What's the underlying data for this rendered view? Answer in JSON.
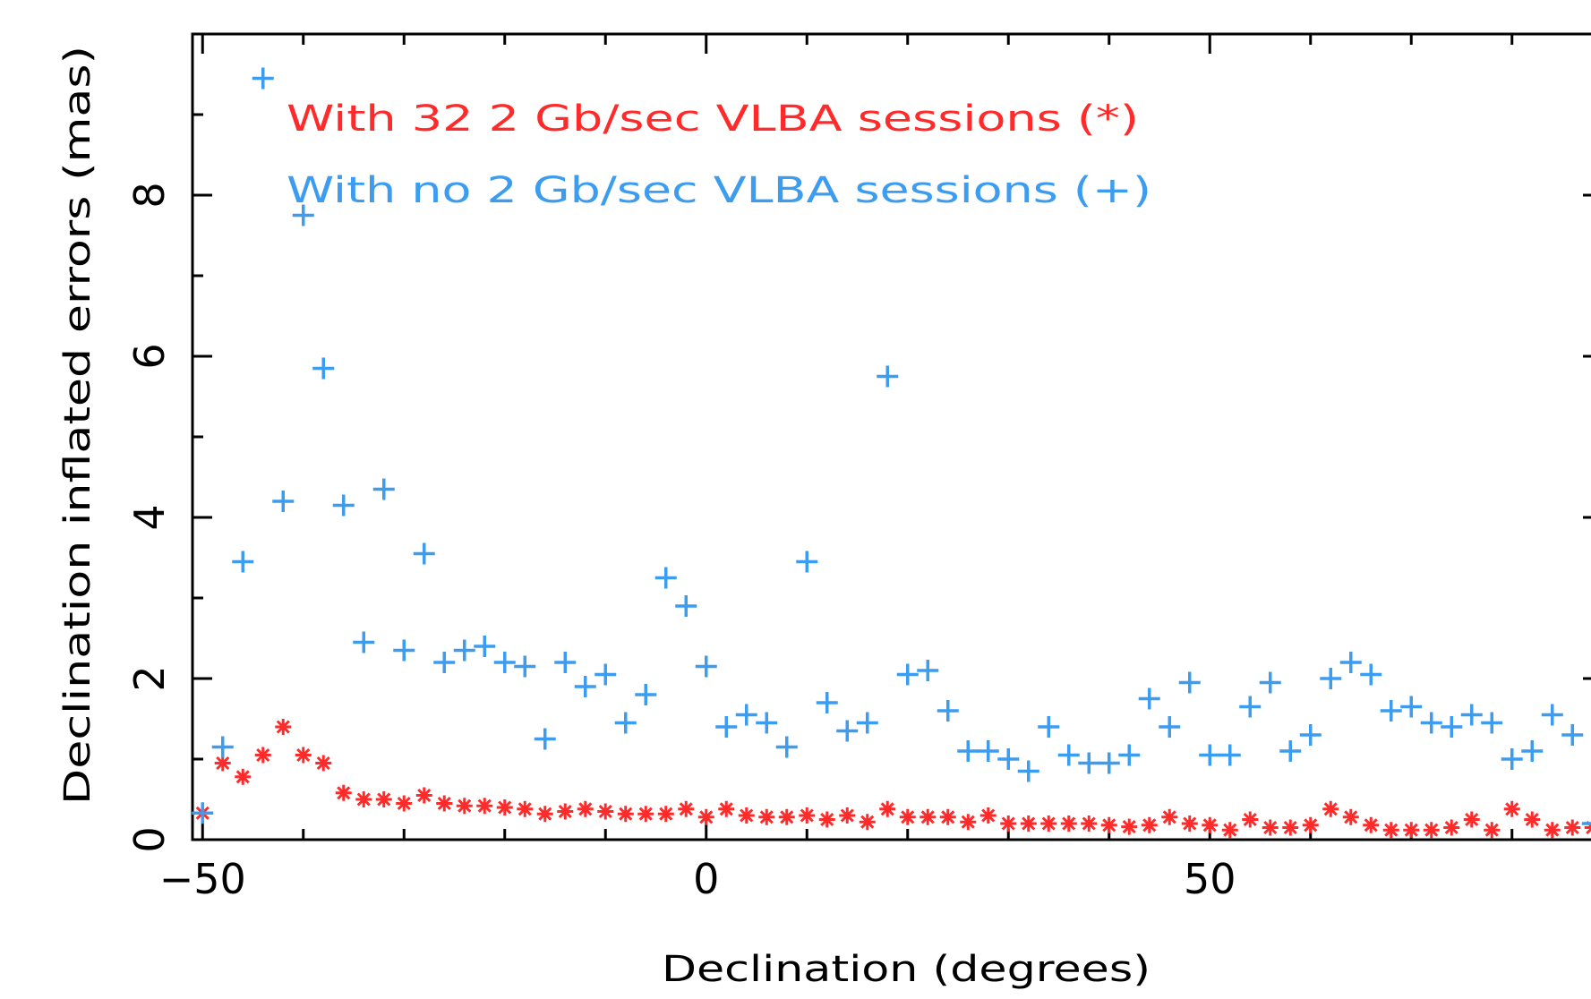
{
  "chart_data": {
    "type": "scatter",
    "xlabel": "Declination (degrees)",
    "ylabel": "Declination inflated errors (mas)",
    "xlim": [
      -51,
      89
    ],
    "ylim": [
      0,
      10
    ],
    "x_ticks": [
      -50,
      0,
      50
    ],
    "x_tick_labels": [
      "−50",
      "0",
      "50"
    ],
    "y_ticks": [
      0,
      2,
      4,
      6,
      8
    ],
    "y_tick_labels": [
      "0",
      "2",
      "4",
      "6",
      "8"
    ],
    "grid": false,
    "legend": {
      "placement": "top-left",
      "entries": [
        {
          "text": "With 32 2 Gb/sec VLBA sessions (*)",
          "series": 0
        },
        {
          "text": "With no 2 Gb/sec VLBA sessions (+)",
          "series": 1
        }
      ]
    },
    "series": [
      {
        "marker": "star",
        "color": "#ff2a2a",
        "points": [
          [
            -50,
            0.33
          ],
          [
            -48,
            0.95
          ],
          [
            -46,
            0.78
          ],
          [
            -44,
            1.05
          ],
          [
            -42,
            1.4
          ],
          [
            -40,
            1.05
          ],
          [
            -38,
            0.95
          ],
          [
            -36,
            0.58
          ],
          [
            -34,
            0.5
          ],
          [
            -32,
            0.5
          ],
          [
            -30,
            0.45
          ],
          [
            -28,
            0.55
          ],
          [
            -26,
            0.45
          ],
          [
            -24,
            0.42
          ],
          [
            -22,
            0.42
          ],
          [
            -20,
            0.4
          ],
          [
            -18,
            0.38
          ],
          [
            -16,
            0.32
          ],
          [
            -14,
            0.35
          ],
          [
            -12,
            0.38
          ],
          [
            -10,
            0.35
          ],
          [
            -8,
            0.32
          ],
          [
            -6,
            0.32
          ],
          [
            -4,
            0.32
          ],
          [
            -2,
            0.38
          ],
          [
            0,
            0.28
          ],
          [
            2,
            0.38
          ],
          [
            4,
            0.3
          ],
          [
            6,
            0.28
          ],
          [
            8,
            0.28
          ],
          [
            10,
            0.3
          ],
          [
            12,
            0.25
          ],
          [
            14,
            0.3
          ],
          [
            16,
            0.22
          ],
          [
            18,
            0.38
          ],
          [
            20,
            0.28
          ],
          [
            22,
            0.28
          ],
          [
            24,
            0.28
          ],
          [
            26,
            0.22
          ],
          [
            28,
            0.3
          ],
          [
            30,
            0.2
          ],
          [
            32,
            0.2
          ],
          [
            34,
            0.2
          ],
          [
            36,
            0.2
          ],
          [
            38,
            0.2
          ],
          [
            40,
            0.18
          ],
          [
            42,
            0.16
          ],
          [
            44,
            0.18
          ],
          [
            46,
            0.28
          ],
          [
            48,
            0.2
          ],
          [
            50,
            0.18
          ],
          [
            52,
            0.12
          ],
          [
            54,
            0.25
          ],
          [
            56,
            0.15
          ],
          [
            58,
            0.15
          ],
          [
            60,
            0.18
          ],
          [
            62,
            0.38
          ],
          [
            64,
            0.28
          ],
          [
            66,
            0.18
          ],
          [
            68,
            0.12
          ],
          [
            70,
            0.12
          ],
          [
            72,
            0.12
          ],
          [
            74,
            0.15
          ],
          [
            76,
            0.25
          ],
          [
            78,
            0.12
          ],
          [
            80,
            0.38
          ],
          [
            82,
            0.25
          ],
          [
            84,
            0.12
          ],
          [
            86,
            0.15
          ],
          [
            88,
            0.15
          ]
        ]
      },
      {
        "marker": "plus",
        "color": "#3b9cf0",
        "points": [
          [
            -50,
            0.33
          ],
          [
            -48,
            1.15
          ],
          [
            -46,
            3.45
          ],
          [
            -44,
            9.45
          ],
          [
            -42,
            4.2
          ],
          [
            -40,
            7.75
          ],
          [
            -38,
            5.85
          ],
          [
            -36,
            4.15
          ],
          [
            -34,
            2.45
          ],
          [
            -32,
            4.35
          ],
          [
            -30,
            2.35
          ],
          [
            -28,
            3.55
          ],
          [
            -26,
            2.2
          ],
          [
            -24,
            2.35
          ],
          [
            -22,
            2.4
          ],
          [
            -20,
            2.2
          ],
          [
            -18,
            2.15
          ],
          [
            -16,
            1.25
          ],
          [
            -14,
            2.2
          ],
          [
            -12,
            1.9
          ],
          [
            -10,
            2.05
          ],
          [
            -8,
            1.45
          ],
          [
            -6,
            1.8
          ],
          [
            -4,
            3.25
          ],
          [
            -2,
            2.9
          ],
          [
            0,
            2.15
          ],
          [
            2,
            1.4
          ],
          [
            4,
            1.55
          ],
          [
            6,
            1.45
          ],
          [
            8,
            1.15
          ],
          [
            10,
            3.45
          ],
          [
            12,
            1.7
          ],
          [
            14,
            1.35
          ],
          [
            16,
            1.45
          ],
          [
            18,
            5.75
          ],
          [
            20,
            2.05
          ],
          [
            22,
            2.1
          ],
          [
            24,
            1.6
          ],
          [
            26,
            1.1
          ],
          [
            28,
            1.1
          ],
          [
            30,
            1.0
          ],
          [
            32,
            0.85
          ],
          [
            34,
            1.4
          ],
          [
            36,
            1.05
          ],
          [
            38,
            0.95
          ],
          [
            40,
            0.95
          ],
          [
            42,
            1.05
          ],
          [
            44,
            1.75
          ],
          [
            46,
            1.4
          ],
          [
            48,
            1.95
          ],
          [
            50,
            1.05
          ],
          [
            52,
            1.05
          ],
          [
            54,
            1.65
          ],
          [
            56,
            1.95
          ],
          [
            58,
            1.1
          ],
          [
            60,
            1.3
          ],
          [
            62,
            2.0
          ],
          [
            64,
            2.2
          ],
          [
            66,
            2.05
          ],
          [
            68,
            1.6
          ],
          [
            70,
            1.65
          ],
          [
            72,
            1.45
          ],
          [
            74,
            1.4
          ],
          [
            76,
            1.55
          ],
          [
            78,
            1.45
          ],
          [
            80,
            1.0
          ],
          [
            82,
            1.1
          ],
          [
            84,
            1.55
          ],
          [
            86,
            1.3
          ],
          [
            88,
            0.2
          ]
        ]
      }
    ]
  }
}
